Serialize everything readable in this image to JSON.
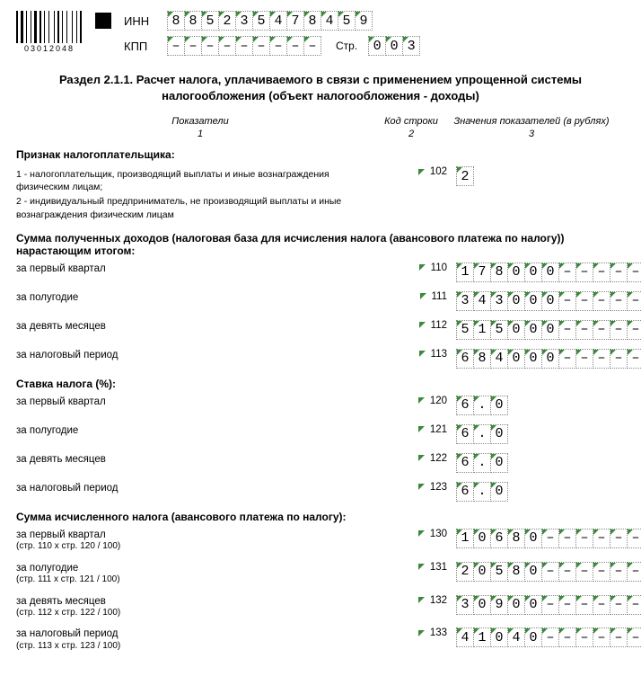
{
  "barcode_number": "03012048",
  "header": {
    "inn_label": "ИНН",
    "kpp_label": "КПП",
    "page_label": "Стр.",
    "inn": [
      "8",
      "8",
      "5",
      "2",
      "3",
      "5",
      "4",
      "7",
      "8",
      "4",
      "5",
      "9"
    ],
    "kpp": [
      "–",
      "–",
      "–",
      "–",
      "–",
      "–",
      "–",
      "–",
      "–"
    ],
    "page": [
      "0",
      "0",
      "3"
    ]
  },
  "title": "Раздел 2.1.1. Расчет налога, уплачиваемого в связи с применением упрощенной системы налогообложения (объект налогообложения - доходы)",
  "columns": {
    "c1": "Показатели",
    "c2": "Код строки",
    "c3": "Значения показателей (в рублях)",
    "n1": "1",
    "n2": "2",
    "n3": "3"
  },
  "taxpayer_sign": {
    "heading": "Признак налогоплательщика:",
    "opt1": "1 - налогоплательщик, производящий выплаты и иные вознаграждения физическим лицам;",
    "opt2": "2 - индивидуальный предприниматель, не производящий выплаты и иные вознаграждения физическим лицам",
    "code": "102",
    "value": [
      "2"
    ]
  },
  "income": {
    "heading": "Сумма полученных доходов (налоговая база для исчисления налога (авансового платежа по налогу)) нарастающим итогом:",
    "rows": [
      {
        "label": "за первый квартал",
        "code": "110",
        "value": [
          "1",
          "7",
          "8",
          "0",
          "0",
          "0",
          "–",
          "–",
          "–",
          "–",
          "–",
          "–"
        ]
      },
      {
        "label": "за полугодие",
        "code": "111",
        "value": [
          "3",
          "4",
          "3",
          "0",
          "0",
          "0",
          "–",
          "–",
          "–",
          "–",
          "–",
          "–"
        ]
      },
      {
        "label": "за девять месяцев",
        "code": "112",
        "value": [
          "5",
          "1",
          "5",
          "0",
          "0",
          "0",
          "–",
          "–",
          "–",
          "–",
          "–",
          "–"
        ]
      },
      {
        "label": "за налоговый период",
        "code": "113",
        "value": [
          "6",
          "8",
          "4",
          "0",
          "0",
          "0",
          "–",
          "–",
          "–",
          "–",
          "–",
          "–"
        ]
      }
    ]
  },
  "rate": {
    "heading": "Ставка налога (%):",
    "rows": [
      {
        "label": "за первый квартал",
        "code": "120",
        "value": [
          "6",
          ".",
          "0"
        ]
      },
      {
        "label": "за полугодие",
        "code": "121",
        "value": [
          "6",
          ".",
          "0"
        ]
      },
      {
        "label": "за девять месяцев",
        "code": "122",
        "value": [
          "6",
          ".",
          "0"
        ]
      },
      {
        "label": "за налоговый период",
        "code": "123",
        "value": [
          "6",
          ".",
          "0"
        ]
      }
    ]
  },
  "tax": {
    "heading": "Сумма исчисленного налога (авансового платежа по налогу):",
    "rows": [
      {
        "label": "за первый квартал",
        "sub": "(стр. 110 x стр. 120 / 100)",
        "code": "130",
        "value": [
          "1",
          "0",
          "6",
          "8",
          "0",
          "–",
          "–",
          "–",
          "–",
          "–",
          "–",
          "–"
        ]
      },
      {
        "label": "за полугодие",
        "sub": "(стр. 111 x стр. 121 / 100)",
        "code": "131",
        "value": [
          "2",
          "0",
          "5",
          "8",
          "0",
          "–",
          "–",
          "–",
          "–",
          "–",
          "–",
          "–"
        ]
      },
      {
        "label": "за девять месяцев",
        "sub": "(стр. 112 x стр. 122 / 100)",
        "code": "132",
        "value": [
          "3",
          "0",
          "9",
          "0",
          "0",
          "–",
          "–",
          "–",
          "–",
          "–",
          "–",
          "–"
        ]
      },
      {
        "label": "за налоговый период",
        "sub": "(стр. 113 x стр. 123 / 100)",
        "code": "133",
        "value": [
          "4",
          "1",
          "0",
          "4",
          "0",
          "–",
          "–",
          "–",
          "–",
          "–",
          "–",
          "–"
        ]
      }
    ]
  },
  "barcode_widths": [
    2,
    1,
    3,
    1,
    1,
    2,
    1,
    1,
    3,
    1,
    2,
    1,
    1,
    2,
    1,
    3,
    1,
    1,
    2,
    1,
    1,
    2,
    1,
    3,
    1,
    2,
    1,
    1,
    2
  ]
}
